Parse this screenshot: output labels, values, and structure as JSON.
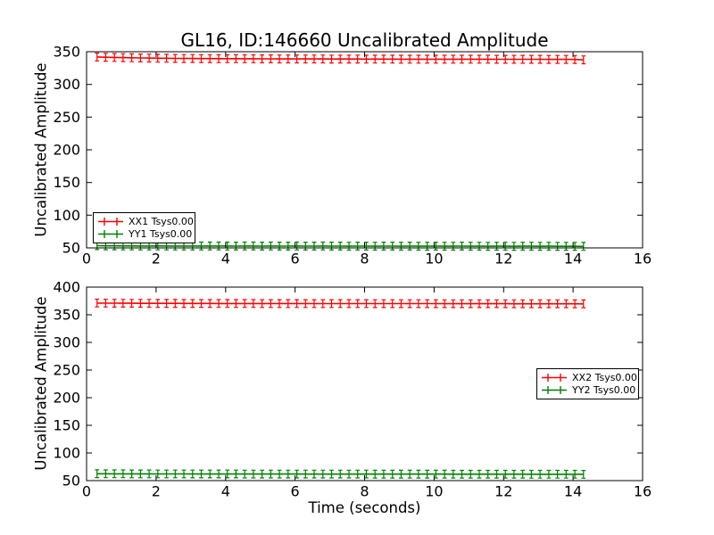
{
  "figure": {
    "title": "GL16, ID:146660 Uncalibrated Amplitude",
    "background_color": "#ffffff",
    "frame_color": "#000000"
  },
  "chart_data": [
    {
      "type": "line",
      "subplot": "top",
      "title": "GL16, ID:146660 Uncalibrated Amplitude",
      "xlabel": "",
      "ylabel": "Uncalibrated Amplitude",
      "xlim": [
        0,
        16
      ],
      "ylim": [
        50,
        350
      ],
      "x_ticks": [
        0,
        2,
        4,
        6,
        8,
        10,
        12,
        14,
        16
      ],
      "y_ticks": [
        50,
        100,
        150,
        200,
        250,
        300,
        350
      ],
      "grid": false,
      "legend_position": "lower-left",
      "marker": "errorbar-plus",
      "x": [
        0.3,
        0.55,
        0.8,
        1.05,
        1.3,
        1.55,
        1.8,
        2.05,
        2.3,
        2.55,
        2.8,
        3.05,
        3.3,
        3.55,
        3.8,
        4.05,
        4.3,
        4.55,
        4.8,
        5.05,
        5.3,
        5.55,
        5.8,
        6.05,
        6.3,
        6.55,
        6.8,
        7.05,
        7.3,
        7.55,
        7.8,
        8.05,
        8.3,
        8.55,
        8.8,
        9.05,
        9.3,
        9.55,
        9.8,
        10.05,
        10.3,
        10.55,
        10.8,
        11.05,
        11.3,
        11.55,
        11.8,
        12.05,
        12.3,
        12.55,
        12.8,
        13.05,
        13.3,
        13.55,
        13.8,
        14.05,
        14.3
      ],
      "series": [
        {
          "name": "XX1 Tsys0.00",
          "color": "#ff0000",
          "yerr": 6,
          "values": [
            342.0,
            341.6,
            341.3,
            341.0,
            340.7,
            340.5,
            340.3,
            340.1,
            340.0,
            339.8,
            339.7,
            339.6,
            339.5,
            339.5,
            339.4,
            339.3,
            339.3,
            339.2,
            339.2,
            339.1,
            339.1,
            339.0,
            339.0,
            339.0,
            338.9,
            338.9,
            338.9,
            338.8,
            338.8,
            338.8,
            338.8,
            338.7,
            338.7,
            338.7,
            338.7,
            338.6,
            338.6,
            338.6,
            338.6,
            338.6,
            338.5,
            338.5,
            338.5,
            338.5,
            338.5,
            338.5,
            338.4,
            338.4,
            338.4,
            338.4,
            338.4,
            338.4,
            338.3,
            338.3,
            338.3,
            338.1,
            337.6
          ]
        },
        {
          "name": "YY1 Tsys0.00",
          "color": "#008000",
          "yerr": 6,
          "values": [
            53.4,
            53.2,
            53.1,
            53.0,
            53.0,
            52.9,
            52.9,
            53.0,
            52.9,
            52.8,
            52.9,
            52.8,
            52.8,
            52.9,
            52.8,
            52.8,
            52.7,
            52.8,
            52.8,
            52.7,
            52.8,
            52.7,
            52.7,
            52.8,
            52.7,
            52.7,
            52.8,
            52.7,
            52.7,
            52.6,
            52.7,
            52.7,
            52.6,
            52.7,
            52.7,
            52.6,
            52.7,
            52.6,
            52.6,
            52.7,
            52.6,
            52.6,
            52.7,
            52.6,
            52.6,
            52.5,
            52.6,
            52.6,
            52.5,
            52.6,
            52.6,
            52.5,
            52.6,
            52.5,
            52.5,
            52.4,
            52.3
          ]
        }
      ]
    },
    {
      "type": "line",
      "subplot": "bottom",
      "title": "",
      "xlabel": "Time (seconds)",
      "ylabel": "Uncalibrated Amplitude",
      "xlim": [
        0,
        16
      ],
      "ylim": [
        50,
        400
      ],
      "x_ticks": [
        0,
        2,
        4,
        6,
        8,
        10,
        12,
        14,
        16
      ],
      "y_ticks": [
        50,
        100,
        150,
        200,
        250,
        300,
        350,
        400
      ],
      "grid": false,
      "legend_position": "center-right",
      "marker": "errorbar-plus",
      "x": [
        0.3,
        0.55,
        0.8,
        1.05,
        1.3,
        1.55,
        1.8,
        2.05,
        2.3,
        2.55,
        2.8,
        3.05,
        3.3,
        3.55,
        3.8,
        4.05,
        4.3,
        4.55,
        4.8,
        5.05,
        5.3,
        5.55,
        5.8,
        6.05,
        6.3,
        6.55,
        6.8,
        7.05,
        7.3,
        7.55,
        7.8,
        8.05,
        8.3,
        8.55,
        8.8,
        9.05,
        9.3,
        9.55,
        9.8,
        10.05,
        10.3,
        10.55,
        10.8,
        11.05,
        11.3,
        11.55,
        11.8,
        12.05,
        12.3,
        12.55,
        12.8,
        13.05,
        13.3,
        13.55,
        13.8,
        14.05,
        14.3
      ],
      "series": [
        {
          "name": "XX2 Tsys0.00",
          "color": "#ff0000",
          "yerr": 7,
          "values": [
            371.2,
            371.0,
            370.9,
            370.8,
            370.8,
            370.7,
            370.7,
            370.6,
            370.6,
            370.6,
            370.5,
            370.5,
            370.5,
            370.5,
            370.4,
            370.4,
            370.4,
            370.4,
            370.4,
            370.3,
            370.3,
            370.3,
            370.3,
            370.3,
            370.3,
            370.2,
            370.2,
            370.2,
            370.2,
            370.2,
            370.2,
            370.2,
            370.1,
            370.1,
            370.1,
            370.1,
            370.1,
            370.1,
            370.1,
            370.1,
            370.0,
            370.0,
            370.0,
            370.0,
            370.0,
            370.0,
            370.0,
            370.0,
            369.9,
            369.9,
            369.9,
            369.9,
            369.9,
            369.9,
            369.9,
            369.8,
            369.7
          ]
        },
        {
          "name": "YY2 Tsys0.00",
          "color": "#008000",
          "yerr": 7,
          "values": [
            62.5,
            62.4,
            62.3,
            62.3,
            62.2,
            62.2,
            62.2,
            62.1,
            62.1,
            62.1,
            62.1,
            62.0,
            62.0,
            62.0,
            62.0,
            62.0,
            62.0,
            61.9,
            61.9,
            61.9,
            61.9,
            61.9,
            61.9,
            61.9,
            61.8,
            61.8,
            61.8,
            61.8,
            61.8,
            61.8,
            61.8,
            61.8,
            61.7,
            61.7,
            61.7,
            61.7,
            61.7,
            61.7,
            61.7,
            61.7,
            61.7,
            61.6,
            61.6,
            61.6,
            61.6,
            61.6,
            61.6,
            61.6,
            61.6,
            61.6,
            61.5,
            61.5,
            61.5,
            61.5,
            61.5,
            61.5,
            61.4
          ]
        }
      ]
    }
  ]
}
